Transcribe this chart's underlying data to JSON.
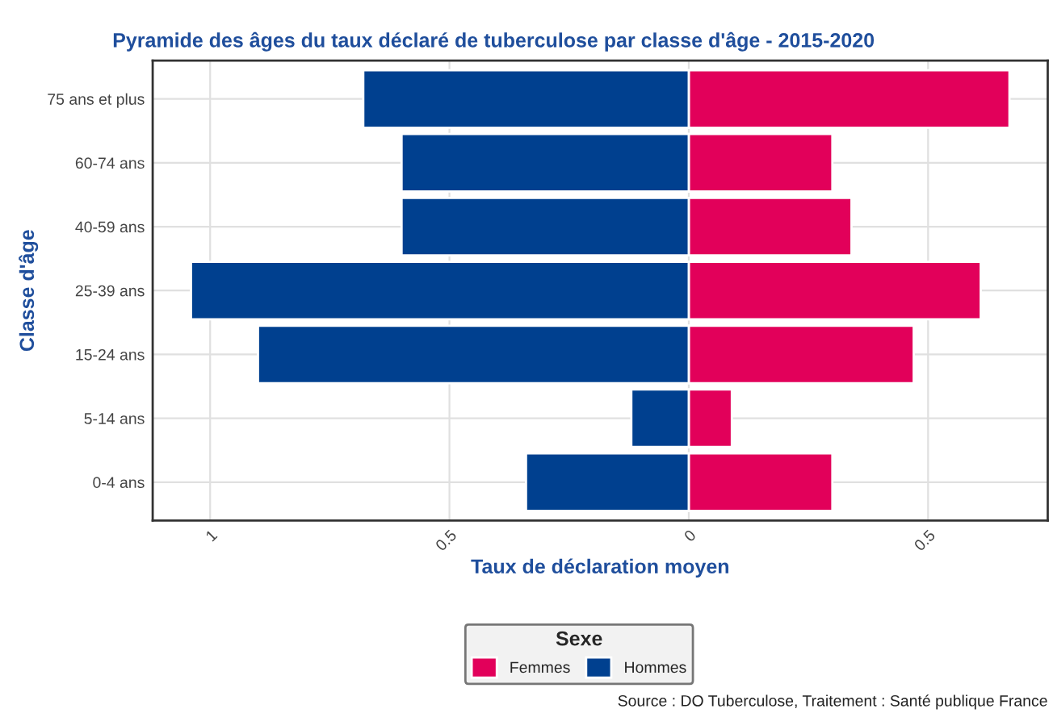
{
  "chart_data": {
    "type": "bar",
    "orientation": "horizontal",
    "title": "Pyramide des âges du taux déclaré de tuberculose par classe d'âge - 2015-2020",
    "xlabel": "Taux de déclaration moyen",
    "ylabel": "Classe d'âge",
    "legend_title": "Sexe",
    "legend": "bottom",
    "grid": true,
    "stacked": true,
    "categories": [
      "75 ans et plus",
      "60-74 ans",
      "40-59 ans",
      "25-39 ans",
      "15-24 ans",
      "5-14 ans",
      "0-4 ans"
    ],
    "series": [
      {
        "name": "Femmes",
        "color": "#e2005a",
        "values": [
          0.67,
          0.3,
          0.34,
          0.61,
          0.47,
          0.09,
          0.3
        ]
      },
      {
        "name": "Hommes",
        "color": "#00408f",
        "values": [
          -0.68,
          -0.6,
          -0.6,
          -1.04,
          -0.9,
          -0.12,
          -0.34
        ]
      }
    ],
    "xlim": [
      -1.12,
      0.75
    ],
    "xticks": [
      {
        "value": -1,
        "label": "1"
      },
      {
        "value": -0.5,
        "label": "0.5"
      },
      0,
      0.5
    ],
    "annotations": [
      "Source : DO Tuberculose, Traitement : Santé publique France"
    ]
  }
}
